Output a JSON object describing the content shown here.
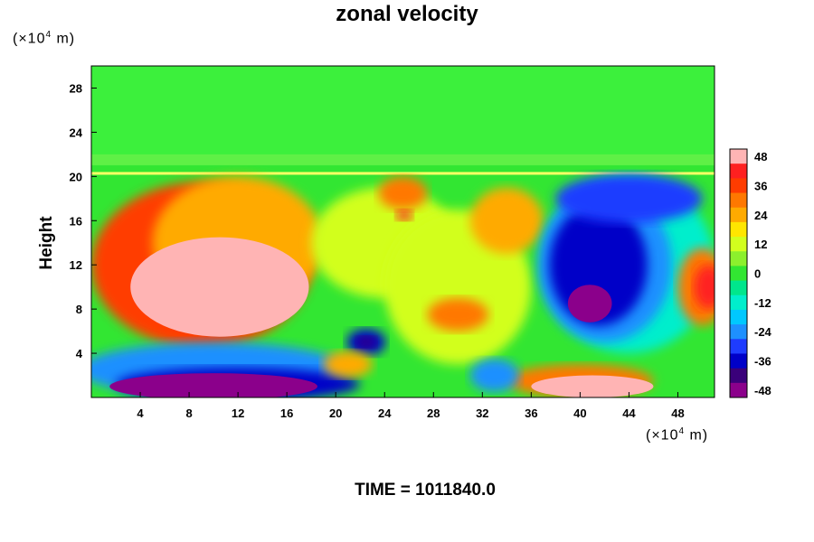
{
  "chart_data": {
    "type": "heatmap",
    "title": "zonal velocity",
    "ylabel": "Height",
    "y_unit": "(×10⁴ m)",
    "x_unit": "(×10⁴ m)",
    "x_ticks": [
      4,
      8,
      12,
      16,
      20,
      24,
      28,
      32,
      36,
      40,
      44,
      48
    ],
    "y_ticks": [
      4,
      8,
      12,
      16,
      20,
      24,
      28
    ],
    "xlim": [
      0,
      51
    ],
    "ylim": [
      0,
      30
    ],
    "colorbar_ticks": [
      48,
      36,
      24,
      12,
      0,
      -12,
      -24,
      -36,
      -48
    ],
    "colorbar_range": [
      -48,
      48
    ],
    "colors": {
      "-48": "#8b008b",
      "-42": "#3a007a",
      "-36": "#0000c8",
      "-30": "#1e3cff",
      "-24": "#1e90ff",
      "-18": "#00c8ff",
      "-12": "#00eecc",
      "-6": "#00e68c",
      "0": "#32e632",
      "6": "#8cf02d",
      "12": "#d2ff1e",
      "18": "#ffe600",
      "24": "#ffaa00",
      "30": "#ff7800",
      "36": "#ff3c00",
      "42": "#ff2020",
      "48": "#ffb4b4"
    },
    "features": [
      {
        "x": 10.5,
        "y": 10,
        "value": 48
      },
      {
        "x": 40.8,
        "y": 8.5,
        "value": -48
      },
      {
        "x": 10,
        "y": 1,
        "value": -48
      },
      {
        "x": 41,
        "y": 1,
        "value": 48
      },
      {
        "x": 50.5,
        "y": 10,
        "value": 40
      },
      {
        "x": 25.6,
        "y": 16.5,
        "value": 40
      },
      {
        "x": 22.5,
        "y": 5,
        "value": -40
      }
    ]
  },
  "footer": {
    "time_label": "TIME = 1011840.0"
  }
}
